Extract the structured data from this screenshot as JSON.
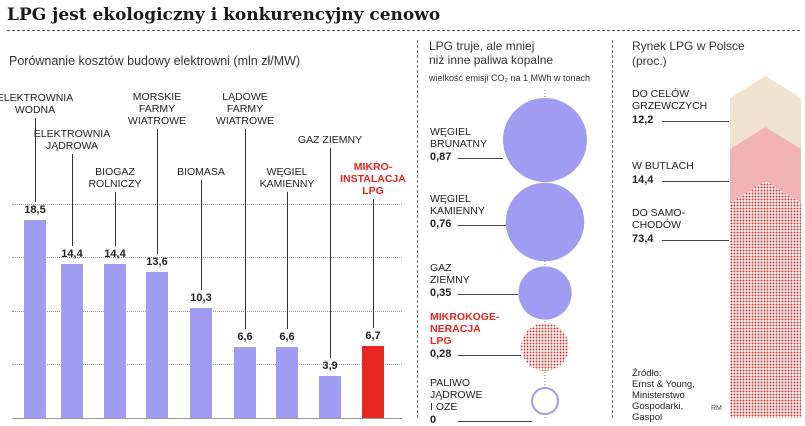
{
  "title": "LPG jest ekologiczny i konkurencyjny cenowo",
  "chart_data": [
    {
      "type": "bar",
      "subtitle": "Porównanie kosztów budowy elektrowni (mln zł/MW)",
      "categories": [
        "ELEKTROWNIA\nWODNA",
        "ELEKTROWNIA\nJĄDROWA",
        "BIOGAZ\nROLNICZY",
        "MORSKIE\nFARMY\nWIATROWE",
        "BIOMASA",
        "LĄDOWE\nFARMY\nWIATROWE",
        "WĘGIEL\nKAMIENNY",
        "GAZ ZIEMNY",
        "MIKRO-\nINSTALACJA\nLPG"
      ],
      "values": [
        18.5,
        14.4,
        14.4,
        13.6,
        10.3,
        6.6,
        6.6,
        3.9,
        6.7
      ],
      "value_labels": [
        "18,5",
        "14,4",
        "14,4",
        "13,6",
        "10,3",
        "6,6",
        "6,6",
        "3,9",
        "6,7"
      ],
      "highlight_index": 8,
      "colors": {
        "bar": "#9f9cf1",
        "highlight": "#e8251e"
      },
      "ylim": [
        0,
        25
      ]
    },
    {
      "type": "bubble",
      "subtitle": "LPG truje, ale mniej\nniż inne paliwa kopalne",
      "note": "wielkość emisji CO₂ na 1 MWh w tonach",
      "categories": [
        "WĘGIEL\nBRUNATNY",
        "WĘGIEL\nKAMIENNY",
        "GAZ\nZIEMNY",
        "MIKROKOGE-\nNERACJA\nLPG",
        "PALIWO\nJĄDROWE\nI OZE"
      ],
      "values": [
        0.87,
        0.76,
        0.35,
        0.28,
        0
      ],
      "value_labels": [
        "0,87",
        "0,76",
        "0,35",
        "0,28",
        "0"
      ],
      "highlight_index": 3,
      "colors": {
        "bubble": "#9f9cf1",
        "highlight": "#e8251e"
      }
    },
    {
      "type": "area",
      "subtitle": "Rynek LPG w Polsce\n(proc.)",
      "categories": [
        "DO CELÓW\nGRZEWCZYCH",
        "W BUTLACH",
        "DO SAMO-\nCHODÓW"
      ],
      "values": [
        12.2,
        14.4,
        73.4
      ],
      "value_labels": [
        "12,2",
        "14,4",
        "73,4"
      ],
      "colors": {
        "segment1": "#efe3cf",
        "segment2": "#f1b3b3",
        "segment3": "#e8251e"
      }
    }
  ],
  "source": "Źródło:\nErnst & Young,\nMinisterstwo\nGospodarki,\nGaspol",
  "author": "RM"
}
